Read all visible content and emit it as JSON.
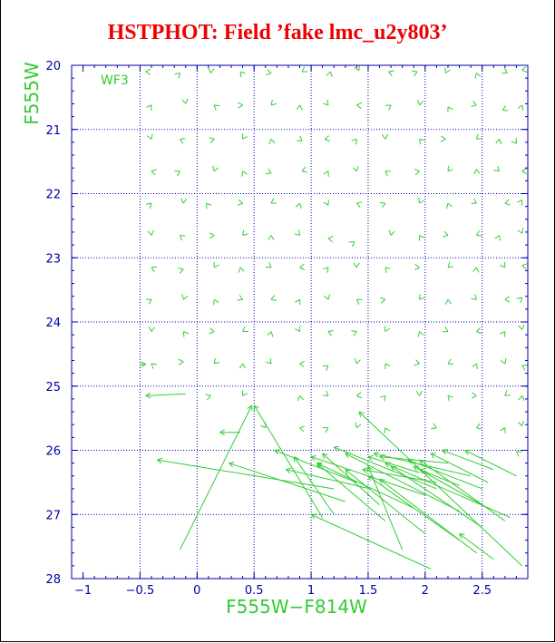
{
  "chart_data": {
    "type": "scatter",
    "title": "HSTPHOT: Field ’fake lmc_u2y803’",
    "xlabel": "F555W−F814W",
    "ylabel": "F555W",
    "panel_label": "WF3",
    "xlim": [
      -1.1,
      2.9
    ],
    "ylim": [
      20,
      28
    ],
    "y_inverted": true,
    "x_ticks": [
      -1,
      -0.5,
      0,
      0.5,
      1,
      1.5,
      2,
      2.5
    ],
    "x_tick_labels": [
      "−1",
      "−0.5",
      "0",
      "0.5",
      "1",
      "1.5",
      "2",
      "2.5"
    ],
    "y_ticks": [
      20,
      21,
      22,
      23,
      24,
      25,
      26,
      27,
      28
    ],
    "y_tick_labels": [
      "20",
      "21",
      "22",
      "23",
      "24",
      "25",
      "26",
      "27",
      "28"
    ],
    "x_grid": [
      -0.5,
      0,
      0.5,
      1,
      1.5,
      2,
      2.5
    ],
    "y_grid": [
      21,
      22,
      23,
      24,
      25,
      26,
      27
    ],
    "grid": true,
    "colors": {
      "marks": "#33cc33",
      "axes": "#0000aa",
      "grid": "#0000aa",
      "title": "#ee0000"
    },
    "series": [
      {
        "description_free": true,
        "markers": [
          [
            -0.45,
            20.1
          ],
          [
            -0.15,
            20.12
          ],
          [
            0.12,
            20.12
          ],
          [
            0.38,
            20.1
          ],
          [
            0.65,
            20.12
          ],
          [
            0.92,
            20.1
          ],
          [
            1.17,
            20.1
          ],
          [
            1.42,
            20.08
          ],
          [
            1.68,
            20.1
          ],
          [
            1.93,
            20.1
          ],
          [
            2.18,
            20.12
          ],
          [
            2.45,
            20.12
          ],
          [
            2.72,
            20.12
          ],
          [
            2.85,
            20.08
          ],
          [
            -0.4,
            20.62
          ],
          [
            -0.1,
            20.6
          ],
          [
            0.15,
            20.62
          ],
          [
            0.4,
            20.62
          ],
          [
            0.65,
            20.62
          ],
          [
            0.9,
            20.62
          ],
          [
            1.15,
            20.62
          ],
          [
            1.4,
            20.62
          ],
          [
            1.7,
            20.62
          ],
          [
            1.95,
            20.62
          ],
          [
            2.2,
            20.65
          ],
          [
            2.45,
            20.62
          ],
          [
            2.68,
            20.7
          ],
          [
            2.85,
            20.62
          ],
          [
            -0.4,
            21.15
          ],
          [
            -0.15,
            21.15
          ],
          [
            0.15,
            21.15
          ],
          [
            0.4,
            21.15
          ],
          [
            0.65,
            21.15
          ],
          [
            0.92,
            21.18
          ],
          [
            1.12,
            21.15
          ],
          [
            1.4,
            21.15
          ],
          [
            1.65,
            21.15
          ],
          [
            1.95,
            21.15
          ],
          [
            2.18,
            21.15
          ],
          [
            2.45,
            21.15
          ],
          [
            2.65,
            21.15
          ],
          [
            2.8,
            21.22
          ],
          [
            -0.4,
            21.65
          ],
          [
            -0.15,
            21.65
          ],
          [
            0.15,
            21.65
          ],
          [
            0.4,
            21.65
          ],
          [
            0.65,
            21.68
          ],
          [
            0.92,
            21.65
          ],
          [
            1.15,
            21.65
          ],
          [
            1.4,
            21.65
          ],
          [
            1.65,
            21.65
          ],
          [
            1.95,
            21.65
          ],
          [
            2.2,
            21.65
          ],
          [
            2.45,
            21.62
          ],
          [
            2.65,
            21.65
          ],
          [
            2.85,
            21.65
          ],
          [
            -0.4,
            22.15
          ],
          [
            -0.12,
            22.15
          ],
          [
            0.08,
            22.15
          ],
          [
            0.4,
            22.15
          ],
          [
            0.65,
            22.15
          ],
          [
            0.9,
            22.15
          ],
          [
            1.15,
            22.18
          ],
          [
            1.4,
            22.15
          ],
          [
            1.65,
            22.15
          ],
          [
            1.95,
            22.15
          ],
          [
            2.2,
            22.15
          ],
          [
            2.45,
            22.15
          ],
          [
            2.7,
            22.15
          ],
          [
            2.85,
            22.1
          ],
          [
            -0.4,
            22.65
          ],
          [
            -0.15,
            22.65
          ],
          [
            0.15,
            22.65
          ],
          [
            0.4,
            22.65
          ],
          [
            0.65,
            22.65
          ],
          [
            0.9,
            22.65
          ],
          [
            1.15,
            22.7
          ],
          [
            1.38,
            22.75
          ],
          [
            1.7,
            22.65
          ],
          [
            1.95,
            22.65
          ],
          [
            2.2,
            22.65
          ],
          [
            2.45,
            22.65
          ],
          [
            2.65,
            22.65
          ],
          [
            2.85,
            22.62
          ],
          [
            -0.4,
            23.15
          ],
          [
            -0.12,
            23.18
          ],
          [
            0.15,
            23.15
          ],
          [
            0.38,
            23.15
          ],
          [
            0.65,
            23.15
          ],
          [
            0.9,
            23.15
          ],
          [
            1.15,
            23.15
          ],
          [
            1.4,
            23.15
          ],
          [
            1.65,
            23.15
          ],
          [
            1.95,
            23.15
          ],
          [
            2.2,
            23.15
          ],
          [
            2.45,
            23.15
          ],
          [
            2.7,
            23.15
          ],
          [
            2.85,
            23.12
          ],
          [
            -0.4,
            23.65
          ],
          [
            -0.12,
            23.65
          ],
          [
            0.15,
            23.65
          ],
          [
            0.4,
            23.65
          ],
          [
            0.65,
            23.65
          ],
          [
            0.9,
            23.65
          ],
          [
            1.15,
            23.65
          ],
          [
            1.4,
            23.65
          ],
          [
            1.65,
            23.65
          ],
          [
            1.95,
            23.65
          ],
          [
            2.2,
            23.65
          ],
          [
            2.45,
            23.65
          ],
          [
            2.7,
            23.65
          ],
          [
            2.85,
            23.62
          ],
          [
            -0.4,
            24.15
          ],
          [
            -0.12,
            24.15
          ],
          [
            0.15,
            24.15
          ],
          [
            0.4,
            24.15
          ],
          [
            0.65,
            24.15
          ],
          [
            0.9,
            24.15
          ],
          [
            1.15,
            24.15
          ],
          [
            1.4,
            24.15
          ],
          [
            1.65,
            24.15
          ],
          [
            1.95,
            24.15
          ],
          [
            2.2,
            24.15
          ],
          [
            2.45,
            24.15
          ],
          [
            2.7,
            24.15
          ],
          [
            2.85,
            24.12
          ],
          [
            -0.4,
            24.65
          ],
          [
            -0.12,
            24.62
          ],
          [
            0.15,
            24.65
          ],
          [
            0.4,
            24.65
          ],
          [
            0.65,
            24.65
          ],
          [
            0.9,
            24.65
          ],
          [
            1.15,
            24.68
          ],
          [
            1.4,
            24.65
          ],
          [
            1.65,
            24.65
          ],
          [
            1.95,
            24.65
          ],
          [
            2.2,
            24.65
          ],
          [
            2.45,
            24.65
          ],
          [
            2.7,
            24.65
          ],
          [
            2.85,
            24.68
          ],
          [
            0.12,
            25.15
          ],
          [
            0.4,
            25.15
          ],
          [
            0.9,
            25.15
          ],
          [
            1.15,
            25.15
          ],
          [
            1.4,
            25.15
          ],
          [
            1.65,
            25.15
          ],
          [
            1.95,
            25.15
          ],
          [
            2.2,
            25.15
          ],
          [
            2.45,
            25.15
          ],
          [
            2.7,
            25.15
          ],
          [
            2.85,
            25.15
          ],
          [
            0.6,
            25.65
          ],
          [
            0.9,
            25.65
          ],
          [
            1.15,
            25.65
          ],
          [
            1.4,
            25.65
          ],
          [
            1.65,
            25.65
          ],
          [
            2.1,
            25.65
          ],
          [
            2.45,
            25.65
          ],
          [
            2.7,
            25.65
          ],
          [
            2.85,
            25.62
          ],
          [
            2.8,
            26.02
          ]
        ],
        "vectors": [
          [
            -0.5,
            24.66,
            -0.45,
            24.66
          ],
          [
            -0.1,
            25.12,
            -0.45,
            25.15
          ],
          [
            0.38,
            25.72,
            0.2,
            25.72
          ],
          [
            -0.15,
            27.55,
            0.48,
            25.3
          ],
          [
            1.1,
            27.05,
            0.5,
            25.3
          ],
          [
            1.2,
            26.6,
            -0.35,
            26.15
          ],
          [
            1.3,
            26.8,
            0.28,
            26.2
          ],
          [
            1.2,
            27.0,
            0.85,
            26.1
          ],
          [
            1.4,
            26.5,
            0.68,
            26.0
          ],
          [
            1.52,
            26.6,
            0.78,
            26.3
          ],
          [
            1.9,
            26.9,
            1.05,
            26.2
          ],
          [
            2.0,
            26.7,
            1.0,
            26.1
          ],
          [
            1.65,
            27.1,
            1.05,
            26.2
          ],
          [
            2.0,
            27.3,
            1.3,
            26.3
          ],
          [
            2.05,
            27.85,
            1.0,
            27.0
          ],
          [
            2.3,
            27.4,
            1.5,
            26.4
          ],
          [
            2.45,
            27.6,
            1.6,
            26.45
          ],
          [
            2.5,
            26.85,
            1.9,
            26.25
          ],
          [
            2.6,
            27.7,
            2.3,
            27.3
          ],
          [
            2.5,
            27.2,
            1.7,
            26.25
          ],
          [
            2.7,
            27.1,
            1.95,
            26.15
          ],
          [
            2.4,
            26.4,
            1.55,
            26.05
          ],
          [
            2.1,
            26.6,
            1.2,
            25.95
          ],
          [
            2.2,
            26.2,
            1.6,
            26.1
          ],
          [
            2.55,
            26.5,
            2.05,
            26.05
          ],
          [
            2.8,
            26.4,
            2.35,
            26.0
          ],
          [
            2.75,
            27.05,
            1.65,
            26.2
          ],
          [
            2.85,
            27.8,
            1.42,
            25.4
          ],
          [
            2.3,
            26.95,
            1.3,
            26.05
          ],
          [
            2.5,
            26.6,
            1.85,
            26.15
          ],
          [
            1.8,
            27.55,
            1.5,
            26.25
          ],
          [
            1.95,
            26.35,
            1.5,
            26.1
          ],
          [
            2.1,
            26.5,
            1.45,
            26.3
          ],
          [
            1.6,
            26.85,
            1.1,
            26.05
          ],
          [
            2.3,
            26.55,
            1.95,
            26.3
          ],
          [
            2.6,
            26.3,
            2.15,
            26.0
          ]
        ]
      }
    ]
  }
}
